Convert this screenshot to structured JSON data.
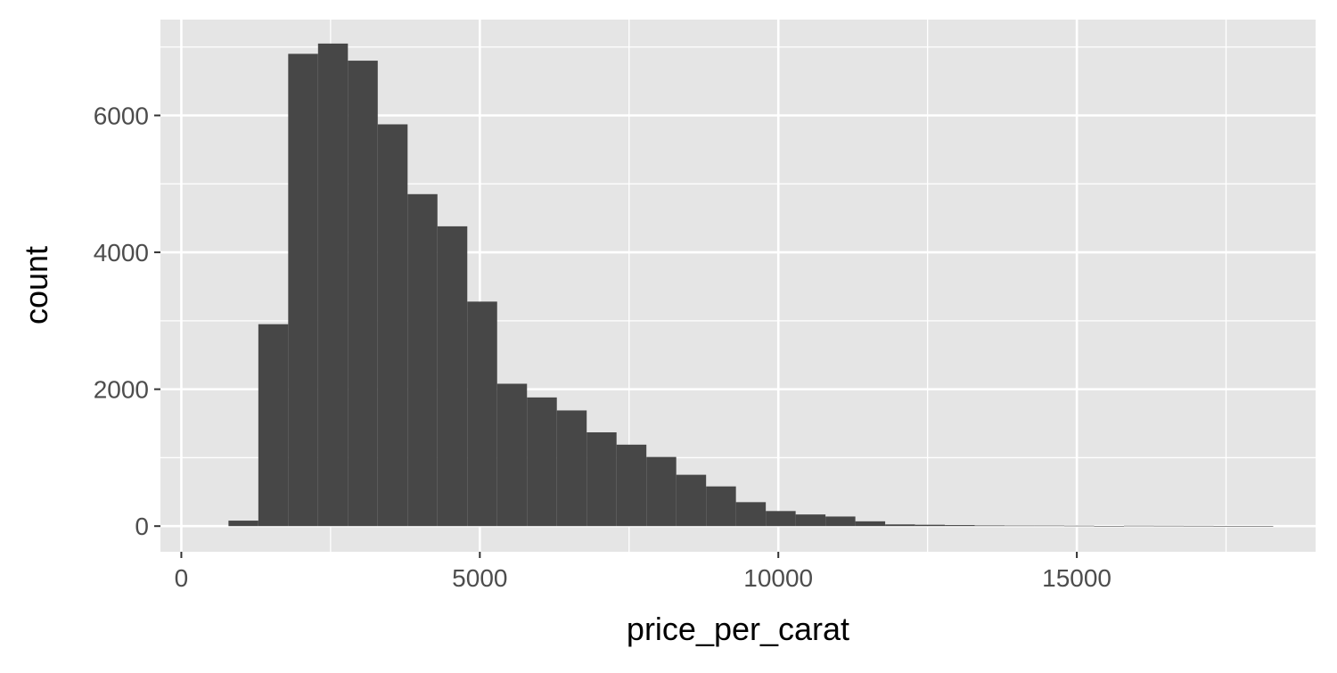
{
  "chart_data": {
    "type": "bar",
    "subtype": "histogram",
    "title": "",
    "xlabel": "price_per_carat",
    "ylabel": "count",
    "xlim": [
      -350,
      19000
    ],
    "ylim": [
      -375,
      7400
    ],
    "x_ticks": [
      0,
      5000,
      10000,
      15000
    ],
    "x_minor_ticks": [
      2500,
      7500,
      12500,
      17500
    ],
    "y_ticks": [
      0,
      2000,
      4000,
      6000
    ],
    "y_minor_ticks": [
      1000,
      3000,
      5000,
      7000
    ],
    "grid": true,
    "legend": "none",
    "colors": {
      "panel_background": "#e5e5e5",
      "grid": "#ffffff",
      "bar_fill": "#474747",
      "tick_text": "#4d4d4d",
      "axis_title": "#000000",
      "tick_mark": "#333333"
    },
    "bins": [
      {
        "x0": 790,
        "x1": 1290,
        "count": 80
      },
      {
        "x0": 1290,
        "x1": 1790,
        "count": 2950
      },
      {
        "x0": 1790,
        "x1": 2290,
        "count": 6900
      },
      {
        "x0": 2290,
        "x1": 2790,
        "count": 7050
      },
      {
        "x0": 2790,
        "x1": 3290,
        "count": 6800
      },
      {
        "x0": 3290,
        "x1": 3790,
        "count": 5870
      },
      {
        "x0": 3790,
        "x1": 4290,
        "count": 4850
      },
      {
        "x0": 4290,
        "x1": 4790,
        "count": 4380
      },
      {
        "x0": 4790,
        "x1": 5290,
        "count": 3280
      },
      {
        "x0": 5290,
        "x1": 5790,
        "count": 2080
      },
      {
        "x0": 5790,
        "x1": 6290,
        "count": 1880
      },
      {
        "x0": 6290,
        "x1": 6790,
        "count": 1690
      },
      {
        "x0": 6790,
        "x1": 7290,
        "count": 1370
      },
      {
        "x0": 7290,
        "x1": 7790,
        "count": 1190
      },
      {
        "x0": 7790,
        "x1": 8290,
        "count": 1010
      },
      {
        "x0": 8290,
        "x1": 8790,
        "count": 750
      },
      {
        "x0": 8790,
        "x1": 9290,
        "count": 580
      },
      {
        "x0": 9290,
        "x1": 9790,
        "count": 350
      },
      {
        "x0": 9790,
        "x1": 10290,
        "count": 220
      },
      {
        "x0": 10290,
        "x1": 10790,
        "count": 170
      },
      {
        "x0": 10790,
        "x1": 11290,
        "count": 140
      },
      {
        "x0": 11290,
        "x1": 11790,
        "count": 70
      },
      {
        "x0": 11790,
        "x1": 12290,
        "count": 25
      },
      {
        "x0": 12290,
        "x1": 12790,
        "count": 20
      },
      {
        "x0": 12790,
        "x1": 13290,
        "count": 15
      },
      {
        "x0": 13290,
        "x1": 13790,
        "count": 10
      },
      {
        "x0": 13790,
        "x1": 14290,
        "count": 8
      },
      {
        "x0": 14290,
        "x1": 14790,
        "count": 8
      },
      {
        "x0": 14790,
        "x1": 15290,
        "count": 6
      },
      {
        "x0": 15290,
        "x1": 15790,
        "count": 2
      },
      {
        "x0": 15790,
        "x1": 16290,
        "count": 6
      },
      {
        "x0": 16290,
        "x1": 16790,
        "count": 5
      },
      {
        "x0": 16790,
        "x1": 17290,
        "count": 4
      },
      {
        "x0": 17290,
        "x1": 17790,
        "count": 1
      },
      {
        "x0": 17790,
        "x1": 18290,
        "count": 1
      }
    ]
  }
}
